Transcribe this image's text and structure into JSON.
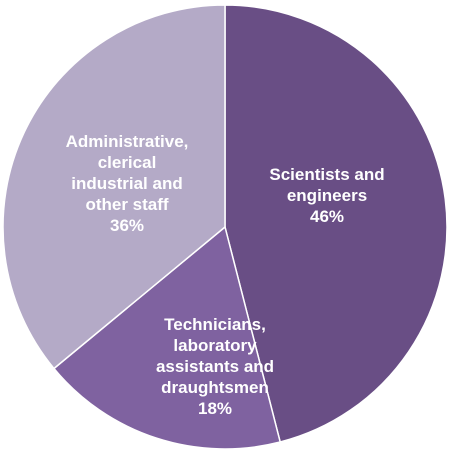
{
  "chart_data": {
    "type": "pie",
    "title": "",
    "slices": [
      {
        "label_lines": [
          "Scientists and",
          "engineers"
        ],
        "value_text": "46%",
        "value": 46,
        "color": "#694e85"
      },
      {
        "label_lines": [
          "Technicians,",
          "laboratory",
          "assistants and",
          "draughtsmen"
        ],
        "value_text": "18%",
        "value": 18,
        "color": "#7f62a0"
      },
      {
        "label_lines": [
          "Administrative,",
          "clerical",
          "industrial and",
          "other staff"
        ],
        "value_text": "36%",
        "value": 36,
        "color": "#b4aac7"
      }
    ]
  }
}
